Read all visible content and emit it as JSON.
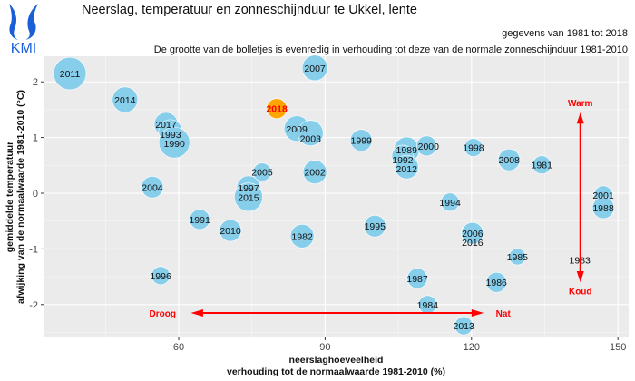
{
  "logo_text": "KMI",
  "chart_data": {
    "type": "scatter",
    "title": "Neerslag, temperatuur en zonneschijnduur te Ukkel, lente",
    "subtitle1": "gegevens van 1981 tot 2018",
    "subtitle2": "De grootte van de bolletjes is evenredig in verhouding tot deze van de normale zonneschijnduur 1981-2010",
    "xlabel1": "neerslaghoeveelheid",
    "xlabel2": "verhouding tot de normaalwaarde 1981-2010 (%)",
    "ylabel1": "gemiddelde temperatuur",
    "ylabel2": "afwijking van de normaalwaarde 1981-2010 (°C)",
    "xlim": [
      32.3,
      152.2
    ],
    "ylim": [
      -2.59,
      2.46
    ],
    "xticks": [
      60,
      90,
      120,
      150
    ],
    "yticks": [
      -2,
      -1,
      0,
      1,
      2
    ],
    "grid": true,
    "colors": {
      "bubble": "#87ceeb",
      "highlight": "#ffa500",
      "highlight_text": "#ff0000",
      "annotation": "#ff0000",
      "panel": "#ebebeb"
    },
    "highlight_year": "2018",
    "points": [
      {
        "year": "2011",
        "x": 37.7,
        "y": 2.15,
        "sun": 138
      },
      {
        "year": "2014",
        "x": 49.0,
        "y": 1.68,
        "sun": 108
      },
      {
        "year": "2017",
        "x": 57.4,
        "y": 1.24,
        "sun": 100
      },
      {
        "year": "1993",
        "x": 58.3,
        "y": 1.11,
        "sun": 100
      },
      {
        "year": "1990",
        "x": 59.1,
        "y": 0.91,
        "sun": 131
      },
      {
        "year": "2018",
        "x": 80.1,
        "y": 1.52,
        "sun": 85
      },
      {
        "year": "2007",
        "x": 87.9,
        "y": 2.25,
        "sun": 108
      },
      {
        "year": "2009",
        "x": 84.2,
        "y": 1.16,
        "sun": 108
      },
      {
        "year": "2003",
        "x": 87.0,
        "y": 1.08,
        "sun": 108
      },
      {
        "year": "2005",
        "x": 77.1,
        "y": 0.38,
        "sun": 77
      },
      {
        "year": "2002",
        "x": 87.9,
        "y": 0.38,
        "sun": 100
      },
      {
        "year": "2004",
        "x": 54.6,
        "y": 0.11,
        "sun": 92
      },
      {
        "year": "1997",
        "x": 74.3,
        "y": 0.1,
        "sun": 100
      },
      {
        "year": "2015",
        "x": 74.3,
        "y": -0.07,
        "sun": 120
      },
      {
        "year": "1991",
        "x": 64.3,
        "y": -0.47,
        "sun": 85
      },
      {
        "year": "2010",
        "x": 70.6,
        "y": -0.67,
        "sun": 92
      },
      {
        "year": "1982",
        "x": 85.3,
        "y": -0.77,
        "sun": 100
      },
      {
        "year": "1995",
        "x": 100.2,
        "y": -0.59,
        "sun": 92
      },
      {
        "year": "1999",
        "x": 97.4,
        "y": 0.95,
        "sun": 92
      },
      {
        "year": "1989",
        "x": 106.7,
        "y": 0.78,
        "sun": 108
      },
      {
        "year": "1992",
        "x": 105.9,
        "y": 0.67,
        "sun": 92
      },
      {
        "year": "2012",
        "x": 106.7,
        "y": 0.47,
        "sun": 100
      },
      {
        "year": "2000",
        "x": 110.8,
        "y": 0.85,
        "sun": 85
      },
      {
        "year": "1998",
        "x": 120.4,
        "y": 0.82,
        "sun": 77
      },
      {
        "year": "2008",
        "x": 127.7,
        "y": 0.6,
        "sun": 92
      },
      {
        "year": "1981",
        "x": 134.4,
        "y": 0.51,
        "sun": 77
      },
      {
        "year": "1994",
        "x": 115.6,
        "y": -0.16,
        "sun": 77
      },
      {
        "year": "2001",
        "x": 147.0,
        "y": -0.03,
        "sun": 77
      },
      {
        "year": "1988",
        "x": 147.0,
        "y": -0.26,
        "sun": 92
      },
      {
        "year": "2006",
        "x": 120.2,
        "y": -0.72,
        "sun": 92
      },
      {
        "year": "2016",
        "x": 120.2,
        "y": -0.72,
        "sun": 92
      },
      {
        "year": "1985",
        "x": 129.4,
        "y": -1.14,
        "sun": 70
      },
      {
        "year": "1983",
        "x": 142.2,
        "y": -1.2,
        "sun": 0
      },
      {
        "year": "1996",
        "x": 56.3,
        "y": -1.48,
        "sun": 77
      },
      {
        "year": "1987",
        "x": 108.9,
        "y": -1.53,
        "sun": 85
      },
      {
        "year": "1986",
        "x": 125.1,
        "y": -1.6,
        "sun": 85
      },
      {
        "year": "1984",
        "x": 111.0,
        "y": -2.0,
        "sun": 77
      },
      {
        "year": "2013",
        "x": 118.4,
        "y": -2.38,
        "sun": 77
      }
    ],
    "annotations": {
      "warm": "Warm",
      "koud": "Koud",
      "droog": "Droog",
      "nat": "Nat"
    }
  }
}
